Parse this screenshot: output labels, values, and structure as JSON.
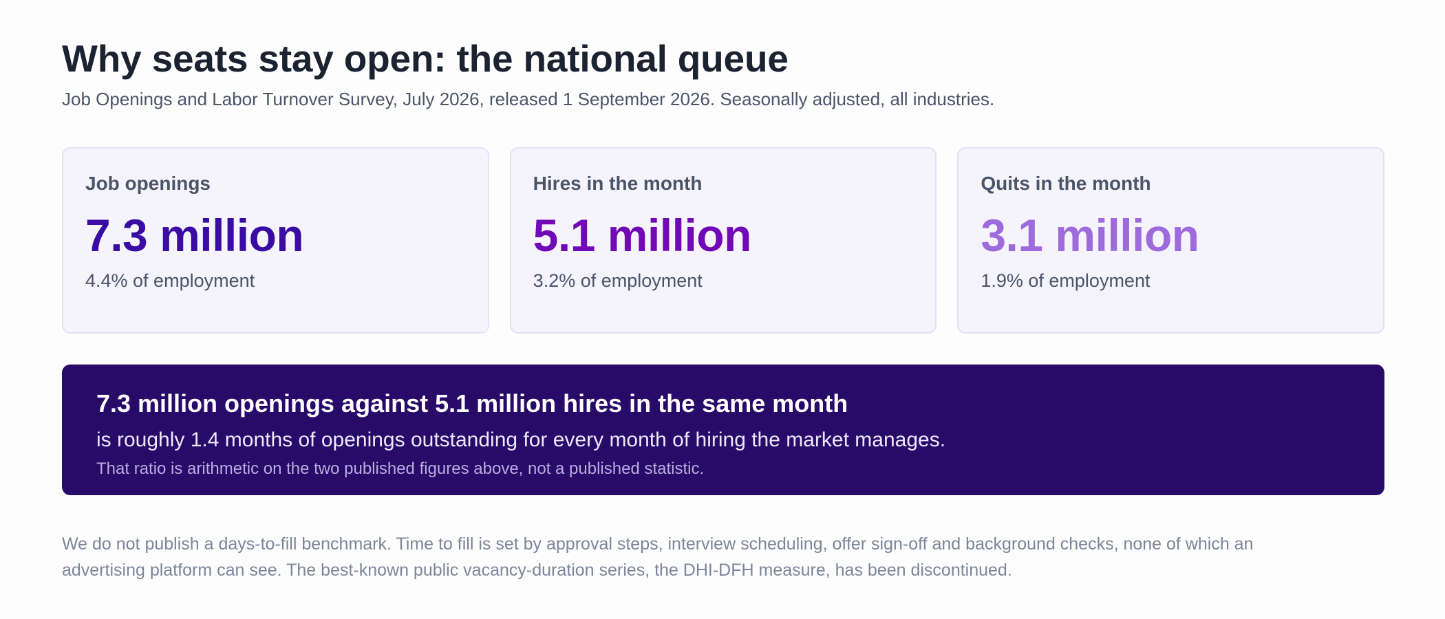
{
  "header": {
    "title": "Why seats stay open: the national queue",
    "subtitle": "Job Openings and Labor Turnover Survey, July 2026, released 1 September 2026. Seasonally adjusted, all industries."
  },
  "stats": [
    {
      "label": "Job openings",
      "value": "7.3 million",
      "note": "4.4% of employment",
      "color": "#3a0ca3"
    },
    {
      "label": "Hires in the month",
      "value": "5.1 million",
      "note": "3.2% of employment",
      "color": "#7209b7"
    },
    {
      "label": "Quits in the month",
      "value": "3.1 million",
      "note": "1.9% of employment",
      "color": "#9d6bdc"
    }
  ],
  "callout": {
    "headline": "7.3 million openings against 5.1 million hires in the same month",
    "body": "is roughly 1.4 months of openings outstanding for every month of hiring the market manages.",
    "note": "That ratio is arithmetic on the two published figures above, not a published statistic.",
    "background": "#280a68"
  },
  "footnote": "We do not publish a days-to-fill benchmark. Time to fill is set by approval steps, interview scheduling, offer sign-off and background checks, none of which an advertising platform can see. The best-known public vacancy-duration series, the DHI-DFH measure, has been discontinued."
}
